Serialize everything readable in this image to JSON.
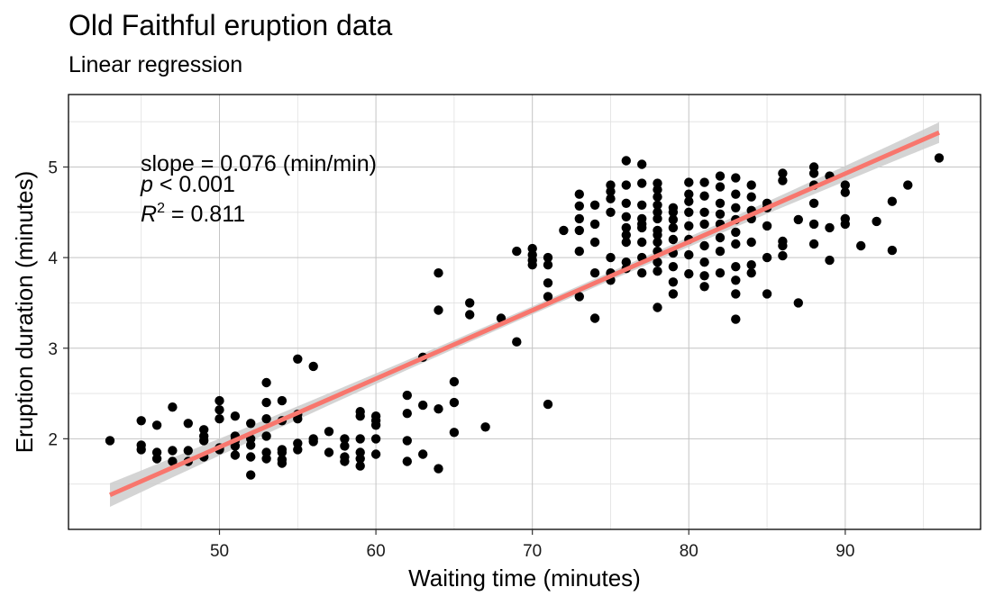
{
  "chart_data": {
    "type": "scatter",
    "title": "Old Faithful eruption data",
    "subtitle": "Linear regression",
    "xlabel": "Waiting time (minutes)",
    "ylabel": "Eruption duration (minutes)",
    "xlim": [
      40.35,
      98.65
    ],
    "ylim": [
      1.0,
      5.8
    ],
    "xticks": [
      50,
      60,
      70,
      80,
      90
    ],
    "yticks": [
      2,
      3,
      4,
      5
    ],
    "grid": true,
    "annotations": {
      "slope": "slope = 0.076 (min/min)",
      "p_prefix": "p",
      "p_rest": " < 0.001",
      "r2_prefix": "R",
      "r2_sup": "2",
      "r2_rest": " = 0.811"
    },
    "fit": {
      "x": [
        43,
        96
      ],
      "y": [
        1.38,
        5.38
      ],
      "color": "#F8766D",
      "band_color": "#cccccc"
    },
    "point_color": "#000000",
    "points": [
      [
        43,
        1.98
      ],
      [
        45,
        1.93
      ],
      [
        45,
        1.88
      ],
      [
        45,
        2.2
      ],
      [
        46,
        2.15
      ],
      [
        46,
        1.85
      ],
      [
        46,
        1.78
      ],
      [
        47,
        2.35
      ],
      [
        47,
        1.87
      ],
      [
        47,
        1.75
      ],
      [
        48,
        1.87
      ],
      [
        48,
        2.17
      ],
      [
        48,
        1.75
      ],
      [
        49,
        1.98
      ],
      [
        49,
        2.1
      ],
      [
        49,
        2.03
      ],
      [
        49,
        1.8
      ],
      [
        50,
        2.42
      ],
      [
        50,
        2.32
      ],
      [
        50,
        2.22
      ],
      [
        50,
        1.88
      ],
      [
        50,
        1.9
      ],
      [
        51,
        2.25
      ],
      [
        51,
        2.03
      ],
      [
        51,
        1.82
      ],
      [
        51,
        1.92
      ],
      [
        51,
        1.98
      ],
      [
        52,
        2.17
      ],
      [
        52,
        2.0
      ],
      [
        52,
        1.8
      ],
      [
        52,
        1.6
      ],
      [
        52,
        1.93
      ],
      [
        53,
        2.62
      ],
      [
        53,
        2.4
      ],
      [
        53,
        2.22
      ],
      [
        53,
        2.03
      ],
      [
        53,
        1.85
      ],
      [
        53,
        1.78
      ],
      [
        54,
        2.42
      ],
      [
        54,
        2.2
      ],
      [
        54,
        1.88
      ],
      [
        54,
        1.85
      ],
      [
        54,
        1.77
      ],
      [
        54,
        1.73
      ],
      [
        55,
        2.88
      ],
      [
        55,
        2.27
      ],
      [
        55,
        2.22
      ],
      [
        55,
        1.95
      ],
      [
        55,
        1.88
      ],
      [
        56,
        2.8
      ],
      [
        56,
        2.0
      ],
      [
        56,
        1.97
      ],
      [
        57,
        2.08
      ],
      [
        57,
        1.85
      ],
      [
        58,
        2.0
      ],
      [
        58,
        1.92
      ],
      [
        58,
        1.8
      ],
      [
        58,
        1.75
      ],
      [
        59,
        2.3
      ],
      [
        59,
        2.25
      ],
      [
        59,
        2.0
      ],
      [
        59,
        1.85
      ],
      [
        59,
        1.78
      ],
      [
        59,
        1.7
      ],
      [
        60,
        2.25
      ],
      [
        60,
        2.2
      ],
      [
        60,
        2.15
      ],
      [
        60,
        2.0
      ],
      [
        60,
        1.83
      ],
      [
        62,
        2.48
      ],
      [
        62,
        2.28
      ],
      [
        62,
        1.98
      ],
      [
        62,
        1.75
      ],
      [
        63,
        2.9
      ],
      [
        63,
        2.37
      ],
      [
        63,
        1.83
      ],
      [
        64,
        3.83
      ],
      [
        64,
        3.42
      ],
      [
        64,
        2.33
      ],
      [
        64,
        1.67
      ],
      [
        65,
        2.63
      ],
      [
        65,
        2.4
      ],
      [
        65,
        2.07
      ],
      [
        66,
        3.5
      ],
      [
        66,
        3.37
      ],
      [
        67,
        2.13
      ],
      [
        68,
        3.33
      ],
      [
        69,
        4.07
      ],
      [
        69,
        3.07
      ],
      [
        70,
        4.1
      ],
      [
        70,
        4.03
      ],
      [
        70,
        3.97
      ],
      [
        70,
        3.92
      ],
      [
        71,
        4.0
      ],
      [
        71,
        3.92
      ],
      [
        71,
        3.72
      ],
      [
        71,
        3.57
      ],
      [
        71,
        2.38
      ],
      [
        72,
        4.3
      ],
      [
        73,
        4.7
      ],
      [
        73,
        4.57
      ],
      [
        73,
        4.43
      ],
      [
        73,
        4.3
      ],
      [
        73,
        4.07
      ],
      [
        73,
        3.57
      ],
      [
        74,
        4.58
      ],
      [
        74,
        4.37
      ],
      [
        74,
        4.17
      ],
      [
        74,
        3.83
      ],
      [
        74,
        3.33
      ],
      [
        75,
        4.8
      ],
      [
        75,
        4.73
      ],
      [
        75,
        4.65
      ],
      [
        75,
        4.5
      ],
      [
        75,
        4.0
      ],
      [
        75,
        3.83
      ],
      [
        75,
        3.75
      ],
      [
        76,
        5.07
      ],
      [
        76,
        4.8
      ],
      [
        76,
        4.6
      ],
      [
        76,
        4.45
      ],
      [
        76,
        4.33
      ],
      [
        76,
        4.25
      ],
      [
        76,
        4.17
      ],
      [
        76,
        3.95
      ],
      [
        76,
        3.88
      ],
      [
        77,
        5.03
      ],
      [
        77,
        4.82
      ],
      [
        77,
        4.58
      ],
      [
        77,
        4.43
      ],
      [
        77,
        4.37
      ],
      [
        77,
        4.33
      ],
      [
        77,
        4.17
      ],
      [
        77,
        4.0
      ],
      [
        77,
        3.83
      ],
      [
        78,
        4.82
      ],
      [
        78,
        4.75
      ],
      [
        78,
        4.67
      ],
      [
        78,
        4.58
      ],
      [
        78,
        4.5
      ],
      [
        78,
        4.43
      ],
      [
        78,
        4.3
      ],
      [
        78,
        4.25
      ],
      [
        78,
        4.17
      ],
      [
        78,
        4.07
      ],
      [
        78,
        3.95
      ],
      [
        78,
        3.85
      ],
      [
        78,
        3.45
      ],
      [
        79,
        4.55
      ],
      [
        79,
        4.5
      ],
      [
        79,
        4.42
      ],
      [
        79,
        4.33
      ],
      [
        79,
        4.2
      ],
      [
        79,
        4.05
      ],
      [
        79,
        3.9
      ],
      [
        79,
        3.73
      ],
      [
        79,
        3.6
      ],
      [
        80,
        4.83
      ],
      [
        80,
        4.7
      ],
      [
        80,
        4.62
      ],
      [
        80,
        4.5
      ],
      [
        80,
        4.35
      ],
      [
        80,
        4.2
      ],
      [
        80,
        4.03
      ],
      [
        80,
        3.82
      ],
      [
        81,
        4.83
      ],
      [
        81,
        4.68
      ],
      [
        81,
        4.5
      ],
      [
        81,
        4.37
      ],
      [
        81,
        4.13
      ],
      [
        81,
        3.95
      ],
      [
        81,
        3.8
      ],
      [
        81,
        3.68
      ],
      [
        82,
        4.9
      ],
      [
        82,
        4.78
      ],
      [
        82,
        4.6
      ],
      [
        82,
        4.48
      ],
      [
        82,
        4.37
      ],
      [
        82,
        4.22
      ],
      [
        82,
        4.07
      ],
      [
        82,
        3.83
      ],
      [
        83,
        4.88
      ],
      [
        83,
        4.7
      ],
      [
        83,
        4.55
      ],
      [
        83,
        4.42
      ],
      [
        83,
        4.28
      ],
      [
        83,
        4.15
      ],
      [
        83,
        3.9
      ],
      [
        83,
        3.75
      ],
      [
        83,
        3.6
      ],
      [
        83,
        3.32
      ],
      [
        84,
        4.8
      ],
      [
        84,
        4.67
      ],
      [
        84,
        4.52
      ],
      [
        84,
        4.43
      ],
      [
        84,
        4.17
      ],
      [
        84,
        3.92
      ],
      [
        84,
        3.83
      ],
      [
        85,
        4.6
      ],
      [
        85,
        4.55
      ],
      [
        85,
        4.35
      ],
      [
        85,
        4.0
      ],
      [
        85,
        3.6
      ],
      [
        86,
        4.93
      ],
      [
        86,
        4.85
      ],
      [
        86,
        4.18
      ],
      [
        86,
        4.13
      ],
      [
        86,
        4.02
      ],
      [
        87,
        4.42
      ],
      [
        87,
        3.5
      ],
      [
        88,
        5.0
      ],
      [
        88,
        4.93
      ],
      [
        88,
        4.8
      ],
      [
        88,
        4.6
      ],
      [
        88,
        4.37
      ],
      [
        88,
        4.15
      ],
      [
        89,
        4.9
      ],
      [
        89,
        4.33
      ],
      [
        89,
        3.97
      ],
      [
        90,
        4.8
      ],
      [
        90,
        4.72
      ],
      [
        90,
        4.43
      ],
      [
        90,
        4.37
      ],
      [
        91,
        4.13
      ],
      [
        92,
        4.4
      ],
      [
        93,
        4.62
      ],
      [
        93,
        4.08
      ],
      [
        94,
        4.8
      ],
      [
        96,
        5.1
      ]
    ]
  }
}
